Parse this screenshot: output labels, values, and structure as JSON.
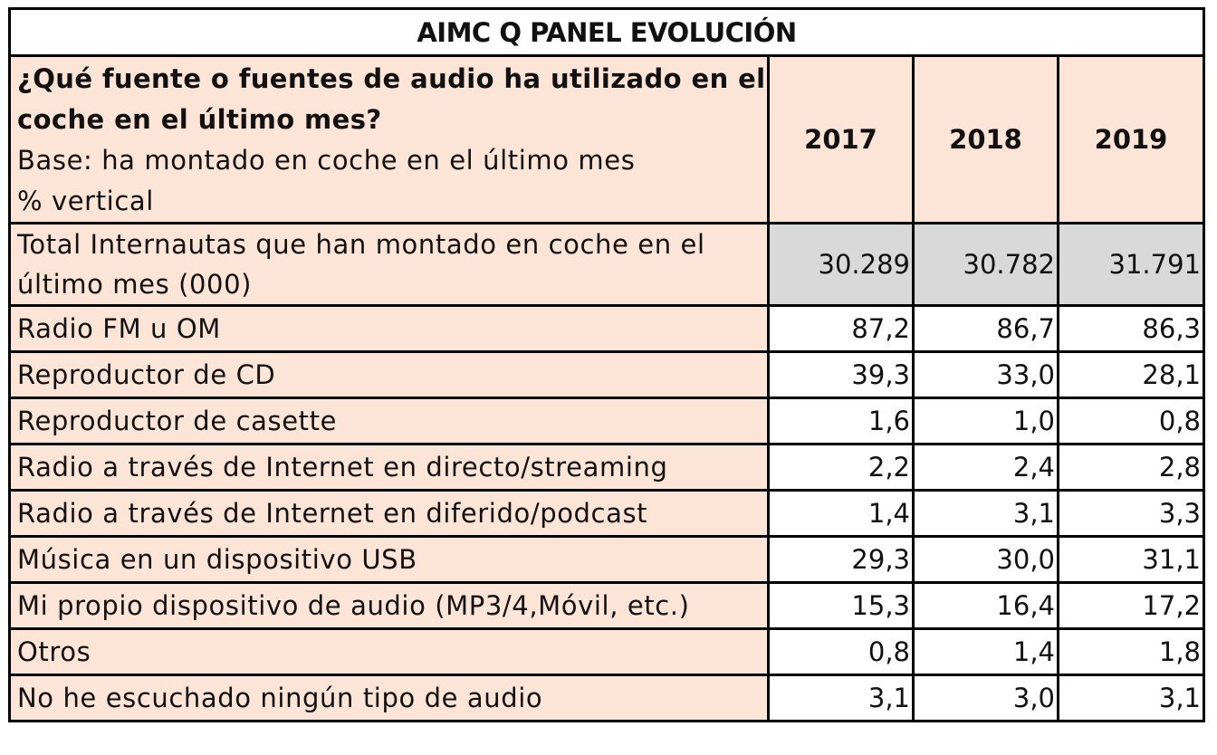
{
  "title": "AIMC Q PANEL EVOLUCIÓN",
  "header": {
    "question": "¿Qué fuente o fuentes de audio ha utilizado en el coche en el último mes?",
    "base": "Base: ha montado en coche en el último mes",
    "unit": "% vertical",
    "years": [
      "2017",
      "2018",
      "2019"
    ]
  },
  "total": {
    "label": "Total Internautas que han montado en coche en el último mes (000)",
    "values": [
      "30.289",
      "30.782",
      "31.791"
    ]
  },
  "rows": [
    {
      "label": "Radio FM u OM",
      "values": [
        "87,2",
        "86,7",
        "86,3"
      ]
    },
    {
      "label": "Reproductor de CD",
      "values": [
        "39,3",
        "33,0",
        "28,1"
      ]
    },
    {
      "label": "Reproductor de casette",
      "values": [
        "1,6",
        "1,0",
        "0,8"
      ]
    },
    {
      "label": "Radio a través de Internet en directo/streaming",
      "values": [
        "2,2",
        "2,4",
        "2,8"
      ]
    },
    {
      "label": "Radio a través de Internet en diferido/podcast",
      "values": [
        "1,4",
        "3,1",
        "3,3"
      ]
    },
    {
      "label": "Música en un dispositivo USB",
      "values": [
        "29,3",
        "30,0",
        "31,1"
      ]
    },
    {
      "label": "Mi propio dispositivo de audio (MP3/4,Móvil, etc.)",
      "values": [
        "15,3",
        "16,4",
        "17,2"
      ]
    },
    {
      "label": "Otros",
      "values": [
        "0,8",
        "1,4",
        "1,8"
      ]
    },
    {
      "label": "No he escuchado ningún tipo de audio",
      "values": [
        "3,1",
        "3,0",
        "3,1"
      ]
    }
  ],
  "colors": {
    "label_bg": "#fce4d6",
    "total_value_bg": "#d9d9d9",
    "value_bg": "#ffffff",
    "border": "#000000"
  },
  "chart_data": {
    "type": "table",
    "title": "AIMC Q PANEL EVOLUCIÓN",
    "columns": [
      "2017",
      "2018",
      "2019"
    ],
    "rows": [
      {
        "label": "Total Internautas que han montado en coche en el último mes (000)",
        "values": [
          30289,
          30782,
          31791
        ]
      },
      {
        "label": "Radio FM u OM",
        "values": [
          87.2,
          86.7,
          86.3
        ]
      },
      {
        "label": "Reproductor de CD",
        "values": [
          39.3,
          33.0,
          28.1
        ]
      },
      {
        "label": "Reproductor de casette",
        "values": [
          1.6,
          1.0,
          0.8
        ]
      },
      {
        "label": "Radio a través de Internet en directo/streaming",
        "values": [
          2.2,
          2.4,
          2.8
        ]
      },
      {
        "label": "Radio a través de Internet en diferido/podcast",
        "values": [
          1.4,
          3.1,
          3.3
        ]
      },
      {
        "label": "Música en un dispositivo USB",
        "values": [
          29.3,
          30.0,
          31.1
        ]
      },
      {
        "label": "Mi propio dispositivo de audio (MP3/4,Móvil, etc.)",
        "values": [
          15.3,
          16.4,
          17.2
        ]
      },
      {
        "label": "Otros",
        "values": [
          0.8,
          1.4,
          1.8
        ]
      },
      {
        "label": "No he escuchado ningún tipo de audio",
        "values": [
          3.1,
          3.0,
          3.1
        ]
      }
    ]
  }
}
